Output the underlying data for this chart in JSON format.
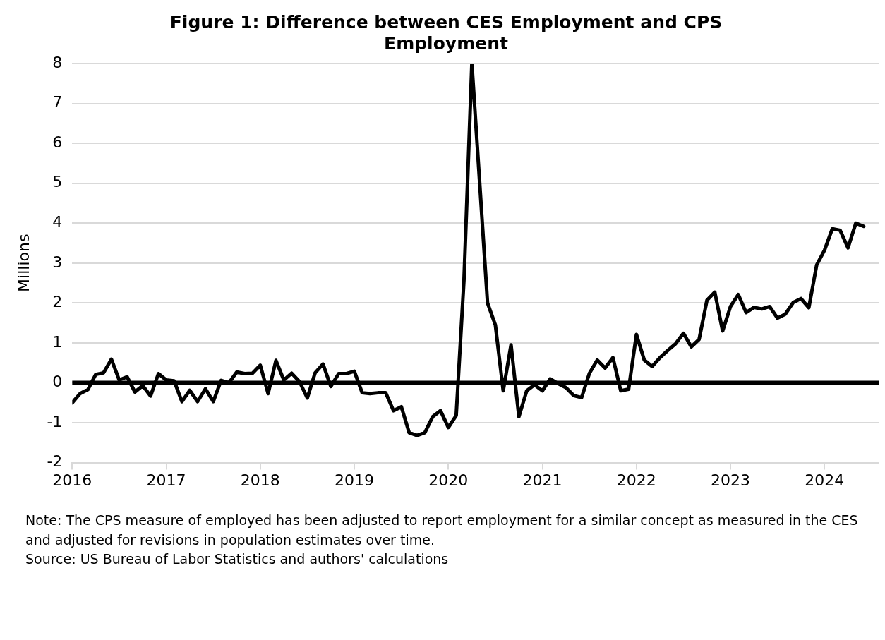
{
  "chart_data": {
    "type": "line",
    "title": "Figure 1: Difference between CES Employment and CPS Employment",
    "ylabel": "Millions",
    "x": [
      "2016-01",
      "2016-02",
      "2016-03",
      "2016-04",
      "2016-05",
      "2016-06",
      "2016-07",
      "2016-08",
      "2016-09",
      "2016-10",
      "2016-11",
      "2016-12",
      "2017-01",
      "2017-02",
      "2017-03",
      "2017-04",
      "2017-05",
      "2017-06",
      "2017-07",
      "2017-08",
      "2017-09",
      "2017-10",
      "2017-11",
      "2017-12",
      "2018-01",
      "2018-02",
      "2018-03",
      "2018-04",
      "2018-05",
      "2018-06",
      "2018-07",
      "2018-08",
      "2018-09",
      "2018-10",
      "2018-11",
      "2018-12",
      "2019-01",
      "2019-02",
      "2019-03",
      "2019-04",
      "2019-05",
      "2019-06",
      "2019-07",
      "2019-08",
      "2019-09",
      "2019-10",
      "2019-11",
      "2019-12",
      "2020-01",
      "2020-02",
      "2020-03",
      "2020-04",
      "2020-05",
      "2020-06",
      "2020-07",
      "2020-08",
      "2020-09",
      "2020-10",
      "2020-11",
      "2020-12",
      "2021-01",
      "2021-02",
      "2021-03",
      "2021-04",
      "2021-05",
      "2021-06",
      "2021-07",
      "2021-08",
      "2021-09",
      "2021-10",
      "2021-11",
      "2021-12",
      "2022-01",
      "2022-02",
      "2022-03",
      "2022-04",
      "2022-05",
      "2022-06",
      "2022-07",
      "2022-08",
      "2022-09",
      "2022-10",
      "2022-11",
      "2022-12",
      "2023-01",
      "2023-02",
      "2023-03",
      "2023-04",
      "2023-05",
      "2023-06",
      "2023-07",
      "2023-08",
      "2023-09",
      "2023-10",
      "2023-11",
      "2023-12",
      "2024-01",
      "2024-02",
      "2024-03",
      "2024-04",
      "2024-05",
      "2024-06"
    ],
    "series": [
      {
        "color": "#000000",
        "values": [
          -0.5,
          -0.27,
          -0.17,
          0.21,
          0.25,
          0.59,
          0.07,
          0.15,
          -0.23,
          -0.07,
          -0.33,
          0.23,
          0.07,
          0.05,
          -0.47,
          -0.19,
          -0.47,
          -0.15,
          -0.47,
          0.06,
          0,
          0.27,
          0.23,
          0.24,
          0.44,
          -0.27,
          0.56,
          0.07,
          0.24,
          0.03,
          -0.38,
          0.25,
          0.47,
          -0.09,
          0.23,
          0.23,
          0.29,
          -0.25,
          -0.27,
          -0.25,
          -0.25,
          -0.7,
          -0.6,
          -1.25,
          -1.32,
          -1.25,
          -0.85,
          -0.7,
          -1.12,
          -0.82,
          2.6,
          8.0,
          5.0,
          2.0,
          1.45,
          -0.2,
          0.95,
          -0.85,
          -0.2,
          -0.05,
          -0.2,
          0.1,
          -0.02,
          -0.12,
          -0.32,
          -0.37,
          0.24,
          0.57,
          0.37,
          0.63,
          -0.2,
          -0.16,
          1.21,
          0.57,
          0.41,
          0.63,
          0.81,
          0.98,
          1.24,
          0.9,
          1.09,
          2.07,
          2.27,
          1.3,
          1.91,
          2.21,
          1.76,
          1.89,
          1.85,
          1.91,
          1.62,
          1.72,
          2.01,
          2.11,
          1.88,
          2.95,
          3.32,
          3.86,
          3.82,
          3.38,
          4.0,
          3.92
        ]
      }
    ],
    "xlim": [
      "2016-01",
      "2024-08"
    ],
    "xticks": [
      "2016",
      "2017",
      "2018",
      "2019",
      "2020",
      "2021",
      "2022",
      "2023",
      "2024"
    ],
    "ylim": [
      -2,
      8
    ],
    "yticks": [
      -2,
      -1,
      0,
      1,
      2,
      3,
      4,
      5,
      6,
      7,
      8
    ],
    "ref_lines": [
      {
        "axis": "y",
        "value": 0,
        "color": "#000000"
      }
    ],
    "grid": "y",
    "legend": false,
    "marker": "none",
    "line_style": "solid",
    "annotations": [
      "Note:  The CPS measure of employed has been adjusted to report employment for a similar concept as measured in the CES and adjusted for revisions in population estimates over time.",
      "Source:  US Bureau of Labor Statistics and authors' calculations"
    ]
  }
}
